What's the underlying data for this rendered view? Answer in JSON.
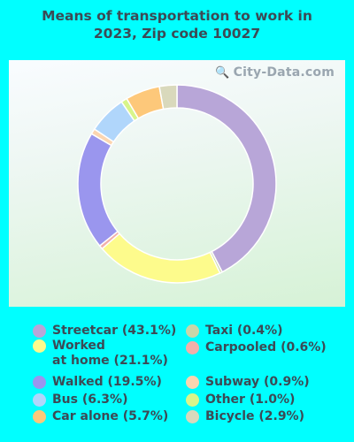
{
  "title": "Means of transportation to work in\n2023, Zip code 10027",
  "watermark": "City-Data.com",
  "chart_data": {
    "type": "pie",
    "style": "donut",
    "slices": [
      {
        "label": "Streetcar",
        "value": 43.1,
        "legend": "Streetcar (43.1%)",
        "color": "#b8a6d8"
      },
      {
        "label": "Taxi",
        "value": 0.4,
        "legend": "Taxi (0.4%)",
        "color": "#c9d6a8"
      },
      {
        "label": "Worked at home",
        "value": 21.1,
        "legend": "Worked\nat home (21.1%)",
        "color": "#fdfb8c"
      },
      {
        "label": "Carpooled",
        "value": 0.6,
        "legend": "Carpooled (0.6%)",
        "color": "#f2b0aa"
      },
      {
        "label": "Walked",
        "value": 19.5,
        "legend": "Walked (19.5%)",
        "color": "#9a96ee"
      },
      {
        "label": "Subway",
        "value": 0.9,
        "legend": "Subway (0.9%)",
        "color": "#fbd5b0"
      },
      {
        "label": "Bus",
        "value": 6.3,
        "legend": "Bus (6.3%)",
        "color": "#b0d6fb"
      },
      {
        "label": "Other",
        "value": 1.0,
        "legend": "Other (1.0%)",
        "color": "#d8f58a"
      },
      {
        "label": "Car alone",
        "value": 5.7,
        "legend": "Car alone (5.7%)",
        "color": "#fdc87a"
      },
      {
        "label": "Bicycle",
        "value": 2.9,
        "legend": "Bicycle (2.9%)",
        "color": "#d9d9bc"
      }
    ],
    "legend_order": [
      "Streetcar",
      "Worked at home",
      "Walked",
      "Bus",
      "Car alone",
      "Taxi",
      "Carpooled",
      "Subway",
      "Other",
      "Bicycle"
    ]
  }
}
